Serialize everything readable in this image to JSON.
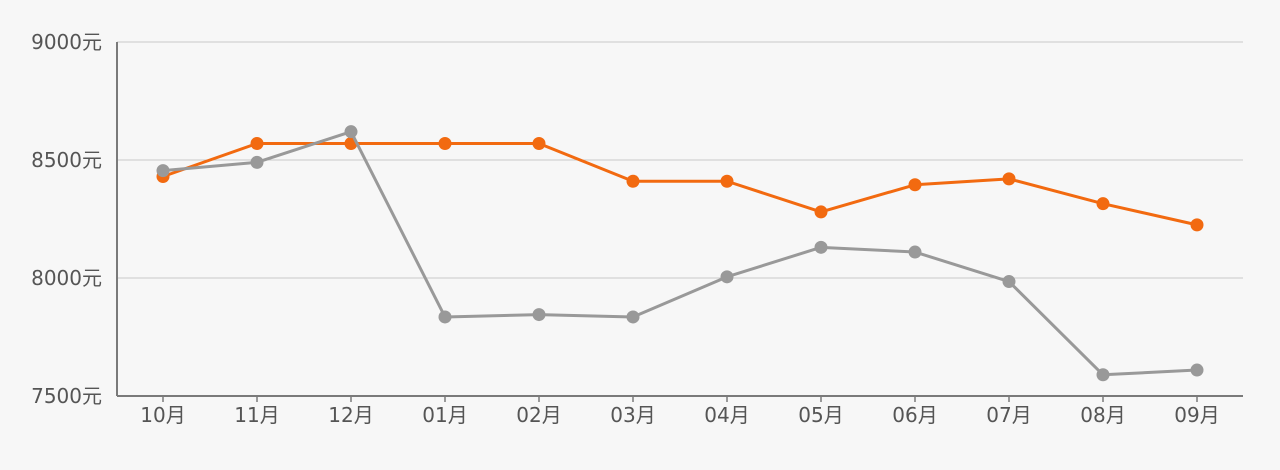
{
  "chart_data": {
    "type": "line",
    "title": "",
    "xlabel": "",
    "ylabel": "",
    "categories": [
      "10月",
      "11月",
      "12月",
      "01月",
      "02月",
      "03月",
      "04月",
      "05月",
      "06月",
      "07月",
      "08月",
      "09月"
    ],
    "ylim": [
      7500,
      9000
    ],
    "yticks": [
      7500,
      8000,
      8500,
      9000
    ],
    "ytick_labels": [
      "7500元",
      "8000元",
      "8500元",
      "9000元"
    ],
    "grid": "horizontal",
    "legend": "none",
    "series": [
      {
        "color": "#f26a10",
        "values": [
          8430,
          8570,
          8570,
          8570,
          8570,
          8410,
          8410,
          8280,
          8395,
          8420,
          8315,
          8225
        ]
      },
      {
        "color": "#999999",
        "values": [
          8455,
          8490,
          8620,
          7835,
          7845,
          7835,
          8005,
          8130,
          8110,
          7985,
          7590,
          7610
        ]
      }
    ]
  }
}
